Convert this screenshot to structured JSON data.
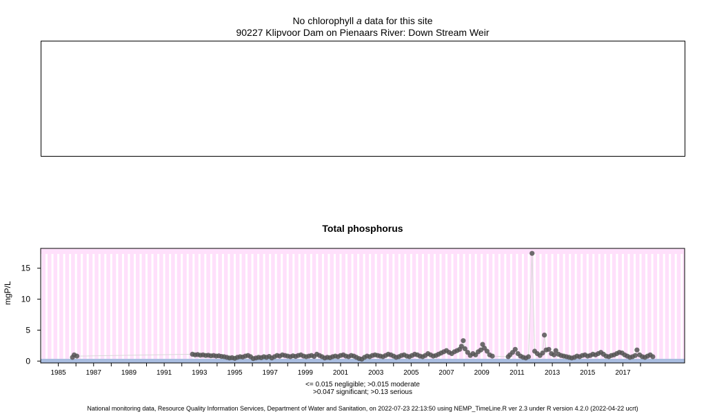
{
  "header": {
    "title_prefix": "No chlorophyll",
    "title_italic": "a",
    "title_suffix": "data for this site",
    "site": "90227 Klipvoor Dam on Pienaars River: Down Stream Weir"
  },
  "colors": {
    "panel_bg": "#ffe0fb",
    "year_stripes": "#ffffff",
    "points": "#555555",
    "band_low": "#a9bde0"
  },
  "footnotes": {
    "line1": "<= 0.015 negligible; >0.015 moderate",
    "line2": ">0.047 significant; >0.13 serious",
    "source": "National monitoring data, Resource Quality Information Services, Department of Water and Sanitation, on 2022-07-23 22:13:50 using NEMP_TimeLine.R ver 2.3 under R version 4.2.0 (2022-04-22 ucrt)"
  },
  "chart_data": {
    "type": "scatter",
    "title": "Total phosphorus",
    "ylabel": "mgP/L",
    "xlim": [
      1984.0,
      2020.5
    ],
    "ylim": [
      -0.3,
      18.2
    ],
    "yticks": [
      0,
      5,
      10,
      15
    ],
    "xticks": [
      1985,
      1987,
      1989,
      1991,
      1993,
      1995,
      1997,
      1999,
      2001,
      2003,
      2005,
      2007,
      2009,
      2011,
      2013,
      2015,
      2017
    ],
    "thresholds": [
      0.015,
      0.047,
      0.13
    ],
    "points": [
      [
        1985.8,
        0.6
      ],
      [
        1985.9,
        1.0
      ],
      [
        1986.05,
        0.8
      ],
      [
        1992.6,
        1.1
      ],
      [
        1992.75,
        1.0
      ],
      [
        1992.9,
        1.05
      ],
      [
        1993.05,
        0.95
      ],
      [
        1993.2,
        1.0
      ],
      [
        1993.35,
        0.9
      ],
      [
        1993.5,
        0.95
      ],
      [
        1993.65,
        0.85
      ],
      [
        1993.8,
        0.9
      ],
      [
        1993.95,
        0.8
      ],
      [
        1994.1,
        0.85
      ],
      [
        1994.25,
        0.75
      ],
      [
        1994.4,
        0.7
      ],
      [
        1994.55,
        0.6
      ],
      [
        1994.7,
        0.5
      ],
      [
        1994.85,
        0.55
      ],
      [
        1995.0,
        0.45
      ],
      [
        1995.15,
        0.6
      ],
      [
        1995.3,
        0.7
      ],
      [
        1995.45,
        0.65
      ],
      [
        1995.6,
        0.8
      ],
      [
        1995.75,
        0.9
      ],
      [
        1995.9,
        0.7
      ],
      [
        1996.05,
        0.4
      ],
      [
        1996.2,
        0.5
      ],
      [
        1996.35,
        0.6
      ],
      [
        1996.5,
        0.55
      ],
      [
        1996.65,
        0.7
      ],
      [
        1996.8,
        0.6
      ],
      [
        1996.95,
        0.75
      ],
      [
        1997.1,
        0.5
      ],
      [
        1997.25,
        0.7
      ],
      [
        1997.4,
        0.9
      ],
      [
        1997.55,
        0.8
      ],
      [
        1997.7,
        1.0
      ],
      [
        1997.85,
        0.9
      ],
      [
        1998.0,
        0.8
      ],
      [
        1998.15,
        0.7
      ],
      [
        1998.3,
        0.85
      ],
      [
        1998.45,
        0.75
      ],
      [
        1998.6,
        0.9
      ],
      [
        1998.75,
        1.0
      ],
      [
        1998.9,
        0.8
      ],
      [
        1999.05,
        0.7
      ],
      [
        1999.2,
        0.8
      ],
      [
        1999.35,
        0.9
      ],
      [
        1999.5,
        0.75
      ],
      [
        1999.65,
        1.1
      ],
      [
        1999.8,
        0.9
      ],
      [
        1999.95,
        0.7
      ],
      [
        2000.1,
        0.5
      ],
      [
        2000.25,
        0.6
      ],
      [
        2000.4,
        0.55
      ],
      [
        2000.55,
        0.7
      ],
      [
        2000.7,
        0.8
      ],
      [
        2000.85,
        0.7
      ],
      [
        2001.0,
        0.9
      ],
      [
        2001.15,
        1.0
      ],
      [
        2001.3,
        0.8
      ],
      [
        2001.45,
        0.7
      ],
      [
        2001.6,
        0.9
      ],
      [
        2001.75,
        0.8
      ],
      [
        2001.9,
        0.6
      ],
      [
        2002.05,
        0.4
      ],
      [
        2002.2,
        0.3
      ],
      [
        2002.35,
        0.6
      ],
      [
        2002.5,
        0.8
      ],
      [
        2002.65,
        0.7
      ],
      [
        2002.8,
        0.9
      ],
      [
        2002.95,
        1.0
      ],
      [
        2003.1,
        0.9
      ],
      [
        2003.25,
        0.8
      ],
      [
        2003.4,
        0.7
      ],
      [
        2003.55,
        0.9
      ],
      [
        2003.7,
        1.1
      ],
      [
        2003.85,
        1.0
      ],
      [
        2004.0,
        0.8
      ],
      [
        2004.15,
        0.6
      ],
      [
        2004.3,
        0.7
      ],
      [
        2004.45,
        0.9
      ],
      [
        2004.6,
        1.0
      ],
      [
        2004.75,
        0.8
      ],
      [
        2004.9,
        0.7
      ],
      [
        2005.05,
        0.9
      ],
      [
        2005.2,
        1.1
      ],
      [
        2005.35,
        1.0
      ],
      [
        2005.5,
        0.8
      ],
      [
        2005.65,
        0.7
      ],
      [
        2005.8,
        0.9
      ],
      [
        2005.95,
        1.2
      ],
      [
        2006.1,
        1.0
      ],
      [
        2006.25,
        0.8
      ],
      [
        2006.4,
        0.9
      ],
      [
        2006.55,
        1.1
      ],
      [
        2006.7,
        1.3
      ],
      [
        2006.85,
        1.5
      ],
      [
        2007.0,
        1.7
      ],
      [
        2007.15,
        1.4
      ],
      [
        2007.3,
        1.2
      ],
      [
        2007.45,
        1.5
      ],
      [
        2007.6,
        1.7
      ],
      [
        2007.75,
        1.9
      ],
      [
        2007.85,
        2.4
      ],
      [
        2007.95,
        3.3
      ],
      [
        2008.05,
        2.0
      ],
      [
        2008.2,
        1.4
      ],
      [
        2008.35,
        0.9
      ],
      [
        2008.5,
        1.2
      ],
      [
        2008.65,
        1.0
      ],
      [
        2008.8,
        1.5
      ],
      [
        2008.95,
        1.8
      ],
      [
        2009.05,
        2.7
      ],
      [
        2009.15,
        2.1
      ],
      [
        2009.3,
        1.6
      ],
      [
        2009.45,
        1.0
      ],
      [
        2009.6,
        0.8
      ],
      [
        2010.5,
        0.7
      ],
      [
        2010.6,
        1.0
      ],
      [
        2010.75,
        1.4
      ],
      [
        2010.9,
        1.9
      ],
      [
        2011.05,
        1.2
      ],
      [
        2011.2,
        0.8
      ],
      [
        2011.35,
        0.6
      ],
      [
        2011.5,
        0.5
      ],
      [
        2011.65,
        0.7
      ],
      [
        2011.85,
        17.4
      ],
      [
        2012.0,
        1.6
      ],
      [
        2012.15,
        1.2
      ],
      [
        2012.3,
        0.9
      ],
      [
        2012.45,
        1.3
      ],
      [
        2012.55,
        4.2
      ],
      [
        2012.65,
        1.8
      ],
      [
        2012.8,
        1.9
      ],
      [
        2012.95,
        1.2
      ],
      [
        2013.1,
        1.0
      ],
      [
        2013.2,
        1.7
      ],
      [
        2013.35,
        1.1
      ],
      [
        2013.5,
        0.9
      ],
      [
        2013.65,
        0.8
      ],
      [
        2013.8,
        0.7
      ],
      [
        2013.95,
        0.6
      ],
      [
        2014.1,
        0.5
      ],
      [
        2014.25,
        0.6
      ],
      [
        2014.4,
        0.8
      ],
      [
        2014.55,
        0.7
      ],
      [
        2014.7,
        0.9
      ],
      [
        2014.85,
        1.0
      ],
      [
        2015.0,
        0.8
      ],
      [
        2015.15,
        0.9
      ],
      [
        2015.3,
        1.1
      ],
      [
        2015.45,
        1.0
      ],
      [
        2015.6,
        1.2
      ],
      [
        2015.75,
        1.4
      ],
      [
        2015.9,
        1.1
      ],
      [
        2016.05,
        0.8
      ],
      [
        2016.2,
        0.7
      ],
      [
        2016.35,
        0.9
      ],
      [
        2016.5,
        1.0
      ],
      [
        2016.65,
        1.2
      ],
      [
        2016.8,
        1.4
      ],
      [
        2016.95,
        1.3
      ],
      [
        2017.1,
        1.0
      ],
      [
        2017.25,
        0.8
      ],
      [
        2017.4,
        0.6
      ],
      [
        2017.55,
        0.7
      ],
      [
        2017.7,
        0.9
      ],
      [
        2017.8,
        1.8
      ],
      [
        2017.95,
        1.0
      ],
      [
        2018.1,
        0.7
      ],
      [
        2018.25,
        0.6
      ],
      [
        2018.4,
        0.8
      ],
      [
        2018.55,
        1.0
      ],
      [
        2018.7,
        0.7
      ]
    ]
  }
}
